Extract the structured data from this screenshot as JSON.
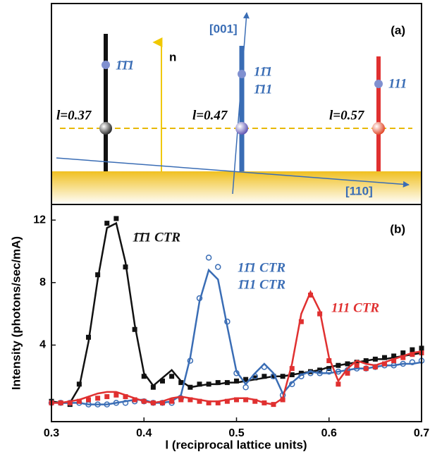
{
  "diagram": {
    "panel_label": "(a)",
    "normal_label": "n",
    "axis_001": "[001]",
    "axis_110": "[110]",
    "rods": [
      {
        "position": "l=0.37",
        "reflections": [
          "1̄1̄1"
        ]
      },
      {
        "position": "l=0.47",
        "reflections": [
          "11̄1",
          "1̄11"
        ]
      },
      {
        "position": "l=0.57",
        "reflections": [
          "111"
        ]
      }
    ]
  },
  "chart_data": {
    "type": "line",
    "panel_label": "(b)",
    "xlabel": "l (reciprocal lattice units)",
    "ylabel": "Intensity (photons/sec/mA)",
    "annotations": [
      "1̄1̄1 CTR",
      "11̄1 CTR",
      "1̄11 CTR",
      "111 CTR"
    ],
    "x": [
      0.3,
      0.31,
      0.32,
      0.33,
      0.34,
      0.35,
      0.36,
      0.37,
      0.38,
      0.39,
      0.4,
      0.41,
      0.42,
      0.43,
      0.44,
      0.45,
      0.46,
      0.47,
      0.48,
      0.49,
      0.5,
      0.51,
      0.52,
      0.53,
      0.54,
      0.55,
      0.56,
      0.57,
      0.58,
      0.59,
      0.6,
      0.61,
      0.62,
      0.63,
      0.64,
      0.65,
      0.66,
      0.67,
      0.68,
      0.69,
      0.7
    ],
    "xlim": [
      0.3,
      0.7
    ],
    "xticks": [
      0.3,
      0.4,
      0.5,
      0.6,
      0.7
    ],
    "ylim": [
      -0.9,
      13
    ],
    "yticks": [
      4,
      8,
      12
    ],
    "series": [
      {
        "color": "#111111",
        "style": "square",
        "values": [
          0.4,
          0.3,
          0.2,
          1.5,
          4.5,
          8.5,
          11.8,
          12.1,
          9.0,
          5.0,
          2.0,
          1.3,
          1.7,
          2.0,
          1.6,
          1.3,
          1.5,
          1.5,
          1.6,
          1.6,
          1.7,
          1.8,
          1.9,
          2.0,
          2.0,
          2.0,
          2.1,
          2.2,
          2.3,
          2.4,
          2.5,
          2.7,
          2.8,
          2.9,
          3.0,
          3.1,
          3.2,
          3.3,
          3.5,
          3.7,
          3.8
        ]
      },
      {
        "color": "#111111",
        "style": "line",
        "values": [
          0.4,
          0.3,
          0.3,
          1.3,
          4.2,
          8.2,
          11.5,
          11.8,
          9.3,
          5.3,
          2.2,
          1.4,
          1.9,
          2.4,
          1.7,
          1.3,
          1.4,
          1.5,
          1.5,
          1.6,
          1.6,
          1.7,
          1.8,
          1.9,
          2.0,
          2.0,
          2.1,
          2.2,
          2.3,
          2.4,
          2.6,
          2.7,
          2.8,
          2.9,
          3.0,
          3.1,
          3.1,
          3.2,
          3.3,
          3.4,
          3.5
        ]
      },
      {
        "color": "#3a6db5",
        "style": "circle",
        "values": [
          0.3,
          0.3,
          0.3,
          0.3,
          0.2,
          0.2,
          0.2,
          0.3,
          0.3,
          0.4,
          0.4,
          0.3,
          0.3,
          0.3,
          0.6,
          3.0,
          7.0,
          9.6,
          9.0,
          5.5,
          2.2,
          1.3,
          2.0,
          2.6,
          2.0,
          0.8,
          1.5,
          2.0,
          2.2,
          2.2,
          2.3,
          2.3,
          2.4,
          2.5,
          2.5,
          2.6,
          2.7,
          2.7,
          2.8,
          2.9,
          3.0
        ]
      },
      {
        "color": "#3a6db5",
        "style": "line",
        "values": [
          0.3,
          0.3,
          0.3,
          0.3,
          0.2,
          0.2,
          0.2,
          0.3,
          0.4,
          0.5,
          0.5,
          0.3,
          0.3,
          0.4,
          0.8,
          3.2,
          6.8,
          8.8,
          8.2,
          5.2,
          2.3,
          1.5,
          2.2,
          2.8,
          2.2,
          0.9,
          1.6,
          2.1,
          2.3,
          2.2,
          2.2,
          2.3,
          2.4,
          2.5,
          2.5,
          2.6,
          2.7,
          2.7,
          2.8,
          2.8,
          2.9
        ]
      },
      {
        "color": "#e03030",
        "style": "square",
        "values": [
          0.3,
          0.3,
          0.3,
          0.4,
          0.5,
          0.6,
          0.7,
          0.8,
          0.7,
          0.5,
          0.4,
          0.3,
          0.3,
          0.4,
          0.5,
          0.5,
          0.4,
          0.3,
          0.3,
          0.4,
          0.5,
          0.5,
          0.4,
          0.3,
          0.2,
          0.5,
          2.5,
          5.5,
          7.2,
          6.0,
          3.0,
          1.5,
          2.2,
          2.7,
          2.5,
          2.6,
          2.8,
          3.0,
          3.2,
          3.4,
          3.5
        ]
      },
      {
        "color": "#e03030",
        "style": "line",
        "values": [
          0.3,
          0.3,
          0.4,
          0.5,
          0.7,
          0.9,
          1.0,
          1.0,
          0.8,
          0.6,
          0.4,
          0.3,
          0.4,
          0.6,
          0.7,
          0.6,
          0.5,
          0.4,
          0.4,
          0.5,
          0.6,
          0.6,
          0.5,
          0.3,
          0.2,
          0.6,
          2.8,
          6.0,
          7.4,
          6.2,
          3.2,
          1.7,
          2.5,
          3.0,
          2.8,
          2.7,
          2.9,
          3.1,
          3.3,
          3.5,
          3.6
        ]
      }
    ]
  }
}
